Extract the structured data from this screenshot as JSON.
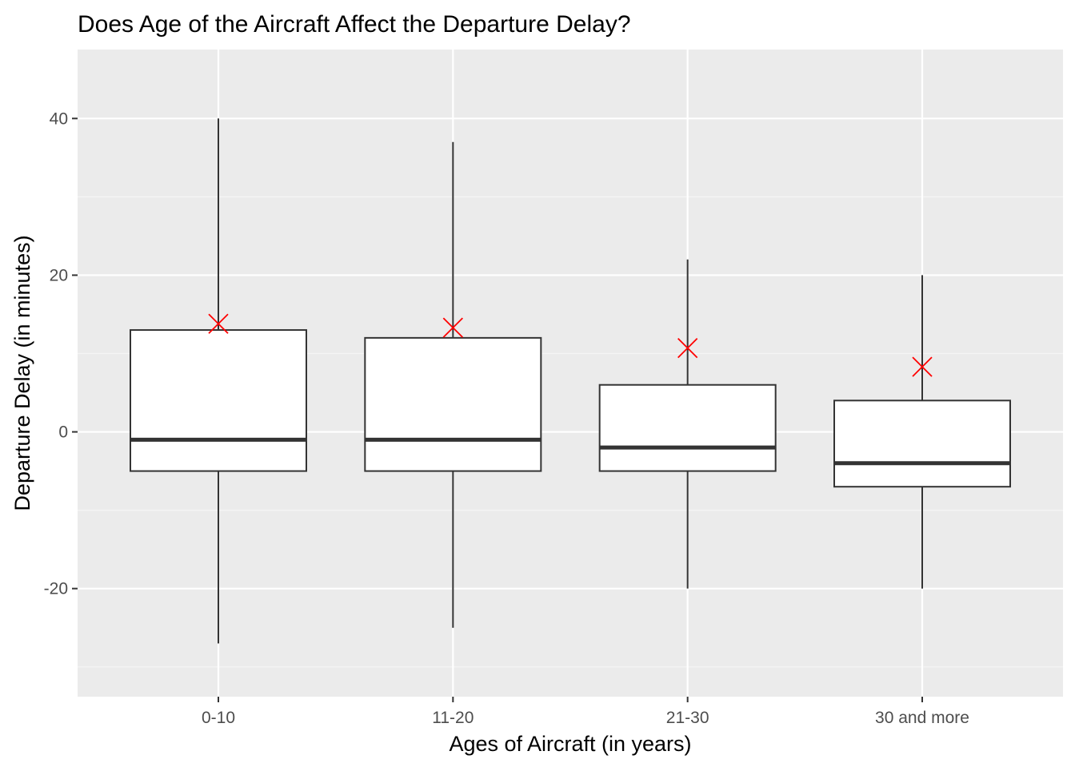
{
  "chart_data": {
    "type": "boxplot",
    "title": "Does Age of the Aircraft Affect the Departure Delay?",
    "xlabel": "Ages of Aircraft (in years)",
    "ylabel": "Departure Delay (in minutes)",
    "categories": [
      "0-10",
      "11-20",
      "21-30",
      "30 and more"
    ],
    "boxes": [
      {
        "category": "0-10",
        "whisker_low": -27,
        "q1": -5,
        "median": -1,
        "q3": 13,
        "whisker_high": 40,
        "mean": 13.8
      },
      {
        "category": "11-20",
        "whisker_low": -25,
        "q1": -5,
        "median": -1,
        "q3": 12,
        "whisker_high": 37,
        "mean": 13.3
      },
      {
        "category": "21-30",
        "whisker_low": -20,
        "q1": -5,
        "median": -2,
        "q3": 6,
        "whisker_high": 22,
        "mean": 10.7
      },
      {
        "category": "30 and more",
        "whisker_low": -20,
        "q1": -7,
        "median": -4,
        "q3": 4,
        "whisker_high": 20,
        "mean": 8.3
      }
    ],
    "y_ticks": [
      -20,
      0,
      20,
      40
    ],
    "y_tick_labels": [
      "-20",
      "0",
      "20",
      "40"
    ],
    "ylim": [
      -33.8,
      48.8
    ],
    "grid": true,
    "legend": "none",
    "colors": {
      "panel_background": "#ebebeb",
      "grid_major": "#ffffff",
      "grid_minor": "#f5f5f5",
      "box_fill": "#ffffff",
      "box_stroke": "#333333",
      "mean_marker": "#ff0000",
      "tick_label": "#4d4d4d",
      "tick_mark": "#333333"
    },
    "mean_marker_shape": "x-cross"
  }
}
